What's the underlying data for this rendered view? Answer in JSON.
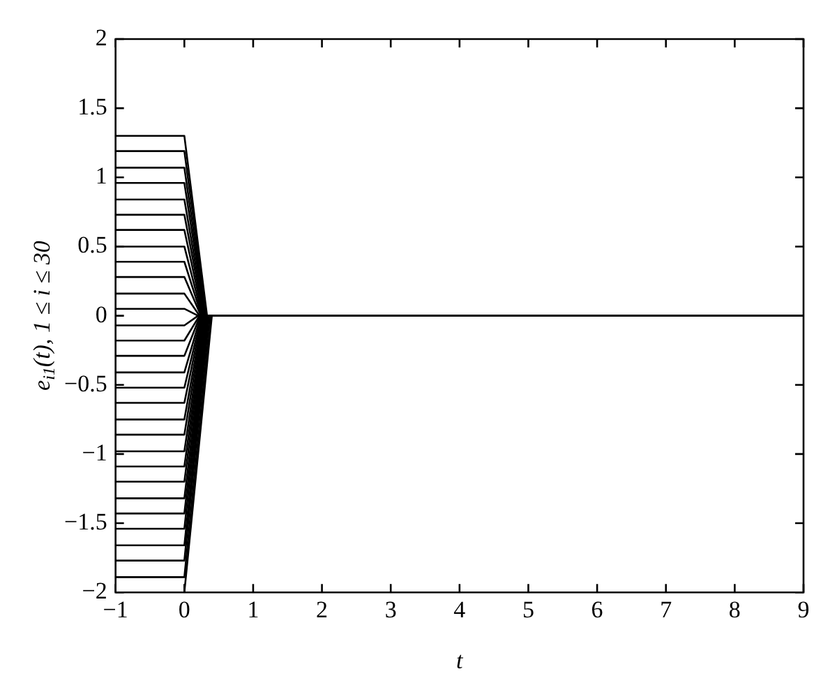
{
  "chart_data": {
    "type": "line",
    "xlabel": "t",
    "ylabel": "e$_{i1}$(t), 1 ≤ i ≤ 30",
    "xlim": [
      -1,
      9
    ],
    "xticks": [
      {
        "value": -1,
        "label": "−1"
      },
      0,
      1,
      2,
      3,
      4,
      5,
      6,
      7,
      8,
      9
    ],
    "ylim": [
      -2,
      2
    ],
    "yticks": [
      {
        "value": -2,
        "label": "−2"
      },
      {
        "value": -1.5,
        "label": "−1.5"
      },
      {
        "value": -1,
        "label": "−1"
      },
      {
        "value": -0.5,
        "label": "−0.5"
      },
      0,
      0.5,
      1,
      1.5,
      2
    ],
    "legend": false,
    "marker": "none",
    "line_style": "solid",
    "series": [
      {
        "color": "#000000",
        "x": [
          -1,
          0,
          0.33,
          9
        ],
        "values": [
          1.3,
          1.3,
          0,
          0
        ]
      },
      {
        "color": "#000000",
        "x": [
          -1,
          0,
          0.32,
          9
        ],
        "values": [
          1.19,
          1.19,
          0,
          0
        ]
      },
      {
        "color": "#000000",
        "x": [
          -1,
          0,
          0.31,
          9
        ],
        "values": [
          1.07,
          1.07,
          0,
          0
        ]
      },
      {
        "color": "#000000",
        "x": [
          -1,
          0,
          0.3,
          9
        ],
        "values": [
          0.96,
          0.96,
          0,
          0
        ]
      },
      {
        "color": "#000000",
        "x": [
          -1,
          0,
          0.29,
          9
        ],
        "values": [
          0.84,
          0.84,
          0,
          0
        ]
      },
      {
        "color": "#000000",
        "x": [
          -1,
          0,
          0.28,
          9
        ],
        "values": [
          0.73,
          0.73,
          0,
          0
        ]
      },
      {
        "color": "#000000",
        "x": [
          -1,
          0,
          0.27,
          9
        ],
        "values": [
          0.62,
          0.62,
          0,
          0
        ]
      },
      {
        "color": "#000000",
        "x": [
          -1,
          0,
          0.26,
          9
        ],
        "values": [
          0.5,
          0.5,
          0,
          0
        ]
      },
      {
        "color": "#000000",
        "x": [
          -1,
          0,
          0.25,
          9
        ],
        "values": [
          0.39,
          0.39,
          0,
          0
        ]
      },
      {
        "color": "#000000",
        "x": [
          -1,
          0,
          0.24,
          9
        ],
        "values": [
          0.28,
          0.28,
          0,
          0
        ]
      },
      {
        "color": "#000000",
        "x": [
          -1,
          0,
          0.22,
          9
        ],
        "values": [
          0.16,
          0.16,
          0,
          0
        ]
      },
      {
        "color": "#000000",
        "x": [
          -1,
          0,
          0.2,
          9
        ],
        "values": [
          0.05,
          0.05,
          0,
          0
        ]
      },
      {
        "color": "#000000",
        "x": [
          -1,
          0,
          0.2,
          9
        ],
        "values": [
          -0.07,
          -0.07,
          0,
          0
        ]
      },
      {
        "color": "#000000",
        "x": [
          -1,
          0,
          0.22,
          9
        ],
        "values": [
          -0.18,
          -0.18,
          0,
          0
        ]
      },
      {
        "color": "#000000",
        "x": [
          -1,
          0,
          0.23,
          9
        ],
        "values": [
          -0.29,
          -0.29,
          0,
          0
        ]
      },
      {
        "color": "#000000",
        "x": [
          -1,
          0,
          0.24,
          9
        ],
        "values": [
          -0.41,
          -0.41,
          0,
          0
        ]
      },
      {
        "color": "#000000",
        "x": [
          -1,
          0,
          0.25,
          9
        ],
        "values": [
          -0.52,
          -0.52,
          0,
          0
        ]
      },
      {
        "color": "#000000",
        "x": [
          -1,
          0,
          0.26,
          9
        ],
        "values": [
          -0.63,
          -0.63,
          0,
          0
        ]
      },
      {
        "color": "#000000",
        "x": [
          -1,
          0,
          0.27,
          9
        ],
        "values": [
          -0.75,
          -0.75,
          0,
          0
        ]
      },
      {
        "color": "#000000",
        "x": [
          -1,
          0,
          0.28,
          9
        ],
        "values": [
          -0.86,
          -0.86,
          0,
          0
        ]
      },
      {
        "color": "#000000",
        "x": [
          -1,
          0,
          0.29,
          9
        ],
        "values": [
          -0.98,
          -0.98,
          0,
          0
        ]
      },
      {
        "color": "#000000",
        "x": [
          -1,
          0,
          0.3,
          9
        ],
        "values": [
          -1.09,
          -1.09,
          0,
          0
        ]
      },
      {
        "color": "#000000",
        "x": [
          -1,
          0,
          0.31,
          9
        ],
        "values": [
          -1.2,
          -1.2,
          0,
          0
        ]
      },
      {
        "color": "#000000",
        "x": [
          -1,
          0,
          0.32,
          9
        ],
        "values": [
          -1.32,
          -1.32,
          0,
          0
        ]
      },
      {
        "color": "#000000",
        "x": [
          -1,
          0,
          0.33,
          9
        ],
        "values": [
          -1.43,
          -1.43,
          0,
          0
        ]
      },
      {
        "color": "#000000",
        "x": [
          -1,
          0,
          0.34,
          9
        ],
        "values": [
          -1.54,
          -1.54,
          0,
          0
        ]
      },
      {
        "color": "#000000",
        "x": [
          -1,
          0,
          0.35,
          9
        ],
        "values": [
          -1.66,
          -1.66,
          0,
          0
        ]
      },
      {
        "color": "#000000",
        "x": [
          -1,
          0,
          0.36,
          9
        ],
        "values": [
          -1.77,
          -1.77,
          0,
          0
        ]
      },
      {
        "color": "#000000",
        "x": [
          -1,
          0,
          0.38,
          9
        ],
        "values": [
          -1.89,
          -1.89,
          0,
          0
        ]
      },
      {
        "color": "#000000",
        "x": [
          -1,
          0,
          0.4,
          9
        ],
        "values": [
          -2.0,
          -2.0,
          0,
          0
        ]
      }
    ]
  }
}
